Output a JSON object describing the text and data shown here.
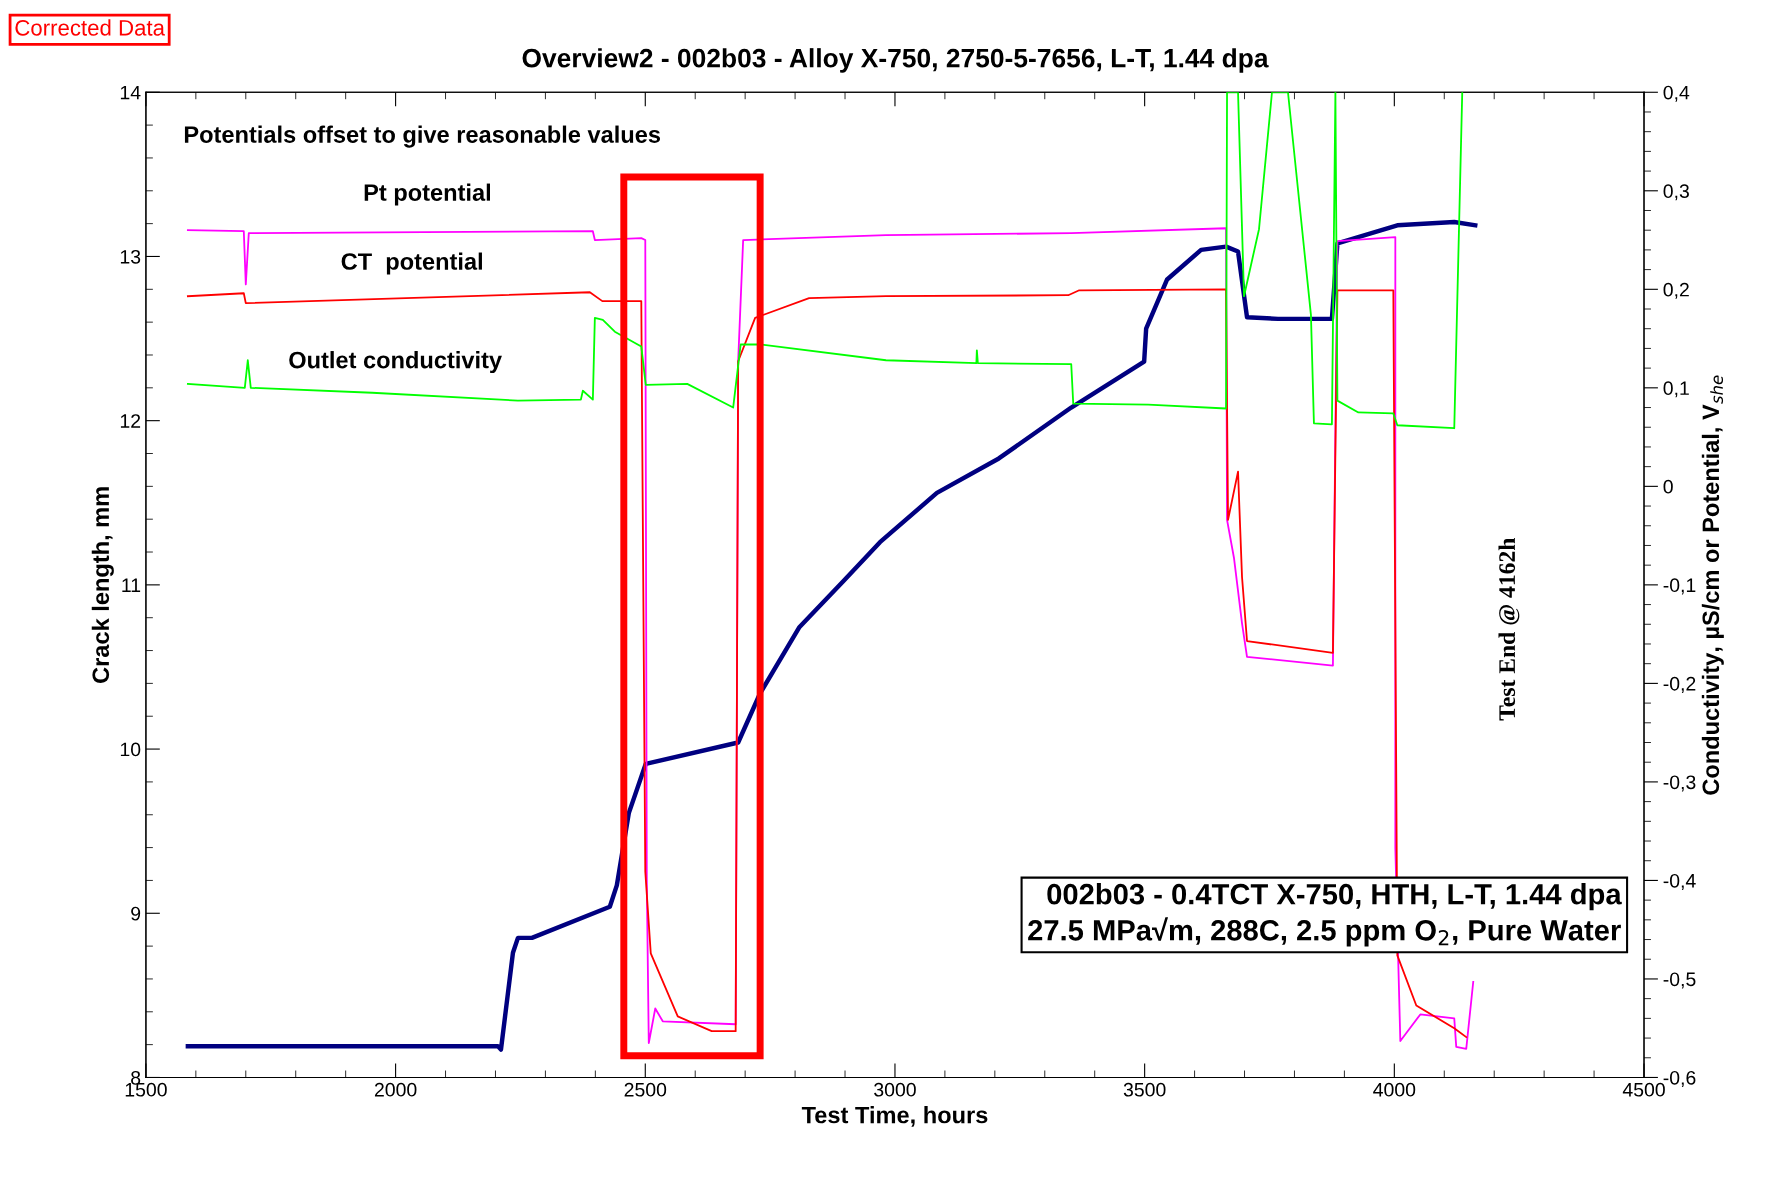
{
  "chart_data": {
    "type": "line",
    "title": "Overview2 - 002b03 - Alloy X-750, 2750-5-7656, L-T, 1.44 dpa",
    "xlabel": "Test Time, hours",
    "ylabel": "Crack length, mm",
    "y2label": "Conductivity, µS/cm or Potential, V$_{she}$",
    "xlim": [
      1500,
      4500
    ],
    "xticks": [
      1500,
      2000,
      2500,
      3000,
      3500,
      4000,
      4500
    ],
    "ylim": [
      8,
      14
    ],
    "yticks": [
      8,
      9,
      10,
      11,
      12,
      13,
      14
    ],
    "y2lim": [
      -0.6,
      0.4
    ],
    "y2ticks": [
      {
        "value": -0.6,
        "label": "-0,6"
      },
      {
        "value": -0.5,
        "label": "-0,5"
      },
      {
        "value": -0.4,
        "label": "-0,4"
      },
      {
        "value": -0.3,
        "label": "-0,3"
      },
      {
        "value": -0.2,
        "label": "-0,2"
      },
      {
        "value": -0.1,
        "label": "-0,1"
      },
      0,
      {
        "value": 0.1,
        "label": "0,1"
      },
      {
        "value": 0.2,
        "label": "0,2"
      },
      {
        "value": 0.3,
        "label": "0,3"
      },
      {
        "value": 0.4,
        "label": "0,4"
      }
    ],
    "grid": false,
    "legend": false,
    "marker": "none",
    "line_style": "solid",
    "annotations": [
      "Corrected Data",
      "Potentials offset to give reasonable values",
      "002b03 - 0.4TCT X-750, HTH, L-T, 1.44 dpa\n27.5 MPa√m, 288C, 2.5 ppm O$_{2}$, Pure Water",
      "Test End @ 4162h"
    ],
    "series": [
      {
        "color": "#000080",
        "x": [
          1584,
          2205,
          2211,
          2235,
          2245,
          2273,
          2429,
          2443,
          2467,
          2501,
          2686,
          2730,
          2808,
          2896,
          2970,
          3084,
          3208,
          3353,
          3499,
          3503,
          3545,
          3613,
          3663,
          3687,
          3705,
          3767,
          3875,
          3886,
          4006,
          4120,
          4162
        ],
        "values": [
          8.19,
          8.19,
          8.17,
          8.76,
          8.85,
          8.85,
          9.04,
          9.17,
          9.61,
          9.91,
          10.04,
          10.34,
          10.74,
          11.02,
          11.26,
          11.56,
          11.77,
          12.08,
          12.36,
          12.56,
          12.86,
          13.04,
          13.06,
          13.03,
          12.63,
          12.62,
          12.62,
          13.08,
          13.19,
          13.21,
          13.19
        ]
      },
      {
        "name": "Pt potential",
        "axis": "y2",
        "color": "#ff00ff",
        "x": [
          1584,
          1696,
          1700,
          1706,
          2395,
          2399,
          2492,
          2500,
          2503,
          2507,
          2520,
          2535,
          2681,
          2686,
          2696,
          2982,
          3353,
          3663,
          3665,
          3679,
          3695,
          3705,
          3877,
          3886,
          4002,
          4002,
          4012,
          4052,
          4120,
          4124,
          4144,
          4158
        ],
        "values": [
          0.26,
          0.259,
          0.205,
          0.257,
          0.259,
          0.25,
          0.252,
          0.25,
          -0.4,
          -0.565,
          -0.53,
          -0.543,
          -0.546,
          0.127,
          0.25,
          0.255,
          0.257,
          0.262,
          -0.034,
          -0.073,
          -0.139,
          -0.173,
          -0.182,
          0.249,
          0.253,
          -0.367,
          -0.563,
          -0.536,
          -0.54,
          -0.569,
          -0.571,
          -0.503
        ]
      },
      {
        "name": "CT  potential",
        "axis": "y2",
        "color": "#ff0000",
        "x": [
          1584,
          1696,
          1700,
          2389,
          2414,
          2492,
          2500,
          2511,
          2565,
          2633,
          2681,
          2686,
          2720,
          2828,
          2982,
          3347,
          3369,
          3663,
          3667,
          3687,
          3695,
          3705,
          3877,
          3886,
          3998,
          4006,
          4044,
          4120,
          4144
        ],
        "values": [
          0.193,
          0.196,
          0.186,
          0.197,
          0.188,
          0.188,
          -0.391,
          -0.474,
          -0.538,
          -0.553,
          -0.553,
          0.127,
          0.171,
          0.191,
          0.193,
          0.194,
          0.199,
          0.2,
          -0.034,
          0.015,
          -0.092,
          -0.157,
          -0.169,
          0.199,
          0.199,
          -0.476,
          -0.527,
          -0.55,
          -0.559
        ]
      },
      {
        "name": "Outlet conductivity",
        "axis": "y2",
        "color": "#00ff00",
        "x": [
          1584,
          1698,
          1704,
          1710,
          1953,
          2245,
          2371,
          2375,
          2395,
          2399,
          2415,
          2439,
          2492,
          2501,
          2584,
          2676,
          2691,
          2730,
          2982,
          3163,
          3164,
          3166,
          3353,
          3357,
          3507,
          3663,
          3665,
          3687,
          3699,
          3729,
          3755,
          3787,
          3833,
          3839,
          3875,
          3882,
          3886,
          3928,
          3998,
          4006,
          4120,
          4136
        ],
        "values": [
          0.104,
          0.1,
          0.128,
          0.1,
          0.095,
          0.087,
          0.088,
          0.097,
          0.088,
          0.171,
          0.169,
          0.157,
          0.142,
          0.103,
          0.104,
          0.08,
          0.144,
          0.144,
          0.128,
          0.125,
          0.138,
          0.125,
          0.124,
          0.084,
          0.083,
          0.079,
          0.4,
          0.4,
          0.193,
          0.261,
          0.4,
          0.4,
          0.174,
          0.064,
          0.063,
          0.4,
          0.087,
          0.075,
          0.074,
          0.062,
          0.059,
          0.4
        ]
      }
    ]
  }
}
